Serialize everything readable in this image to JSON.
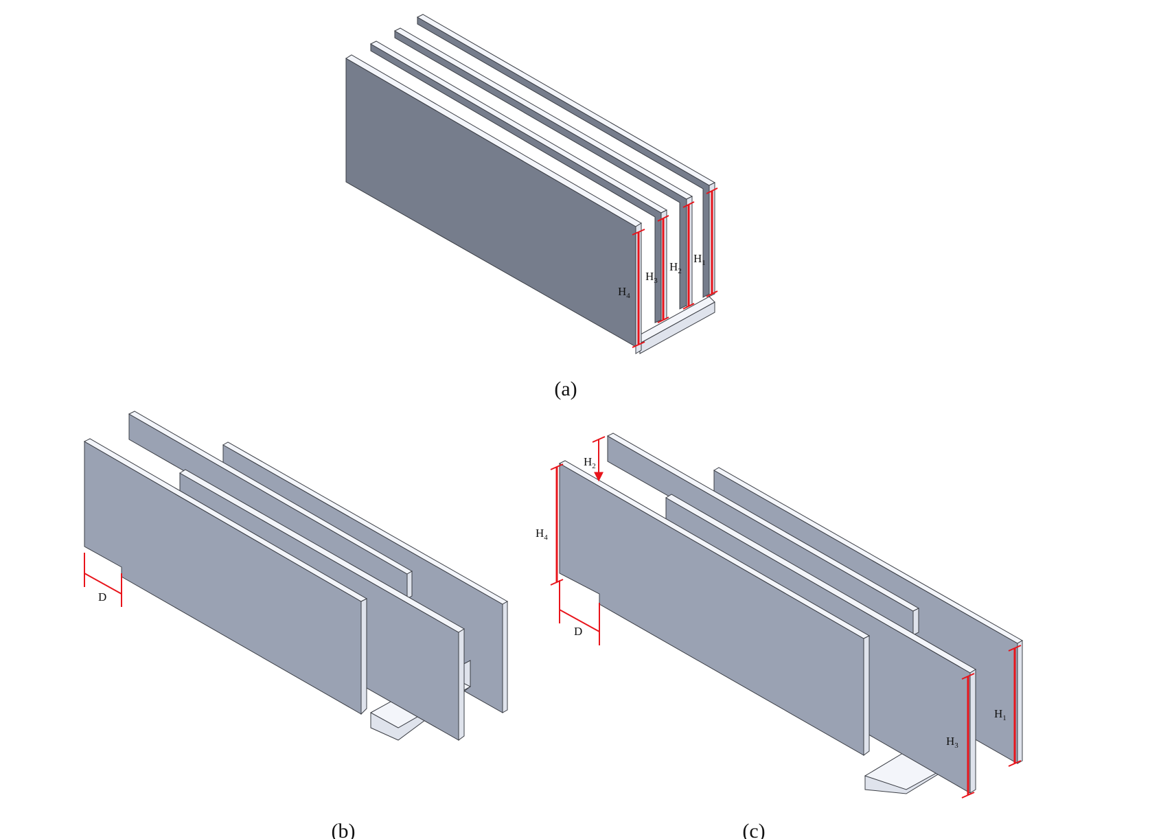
{
  "figure": {
    "colors": {
      "fin_dark": "#767d8c",
      "fin_light": "#9aa2b3",
      "fin_edge": "#f3f5fa",
      "fin_side": "#dfe3ec",
      "outline": "#3a3d44",
      "dimension": "#e8141b"
    },
    "panel_a": {
      "caption": "(a)",
      "dimensions": [
        {
          "symbol": "H",
          "subscript": "4"
        },
        {
          "symbol": "H",
          "subscript": "3"
        },
        {
          "symbol": "H",
          "subscript": "2"
        },
        {
          "symbol": "H",
          "subscript": "1"
        }
      ]
    },
    "panel_b": {
      "caption": "(b)",
      "dimensions": [
        {
          "symbol": "D"
        }
      ]
    },
    "panel_c": {
      "caption": "(c)",
      "dimensions": [
        {
          "symbol": "H",
          "subscript": "2"
        },
        {
          "symbol": "H",
          "subscript": "4"
        },
        {
          "symbol": "D"
        },
        {
          "symbol": "H",
          "subscript": "1"
        },
        {
          "symbol": "H",
          "subscript": "3"
        }
      ]
    }
  }
}
